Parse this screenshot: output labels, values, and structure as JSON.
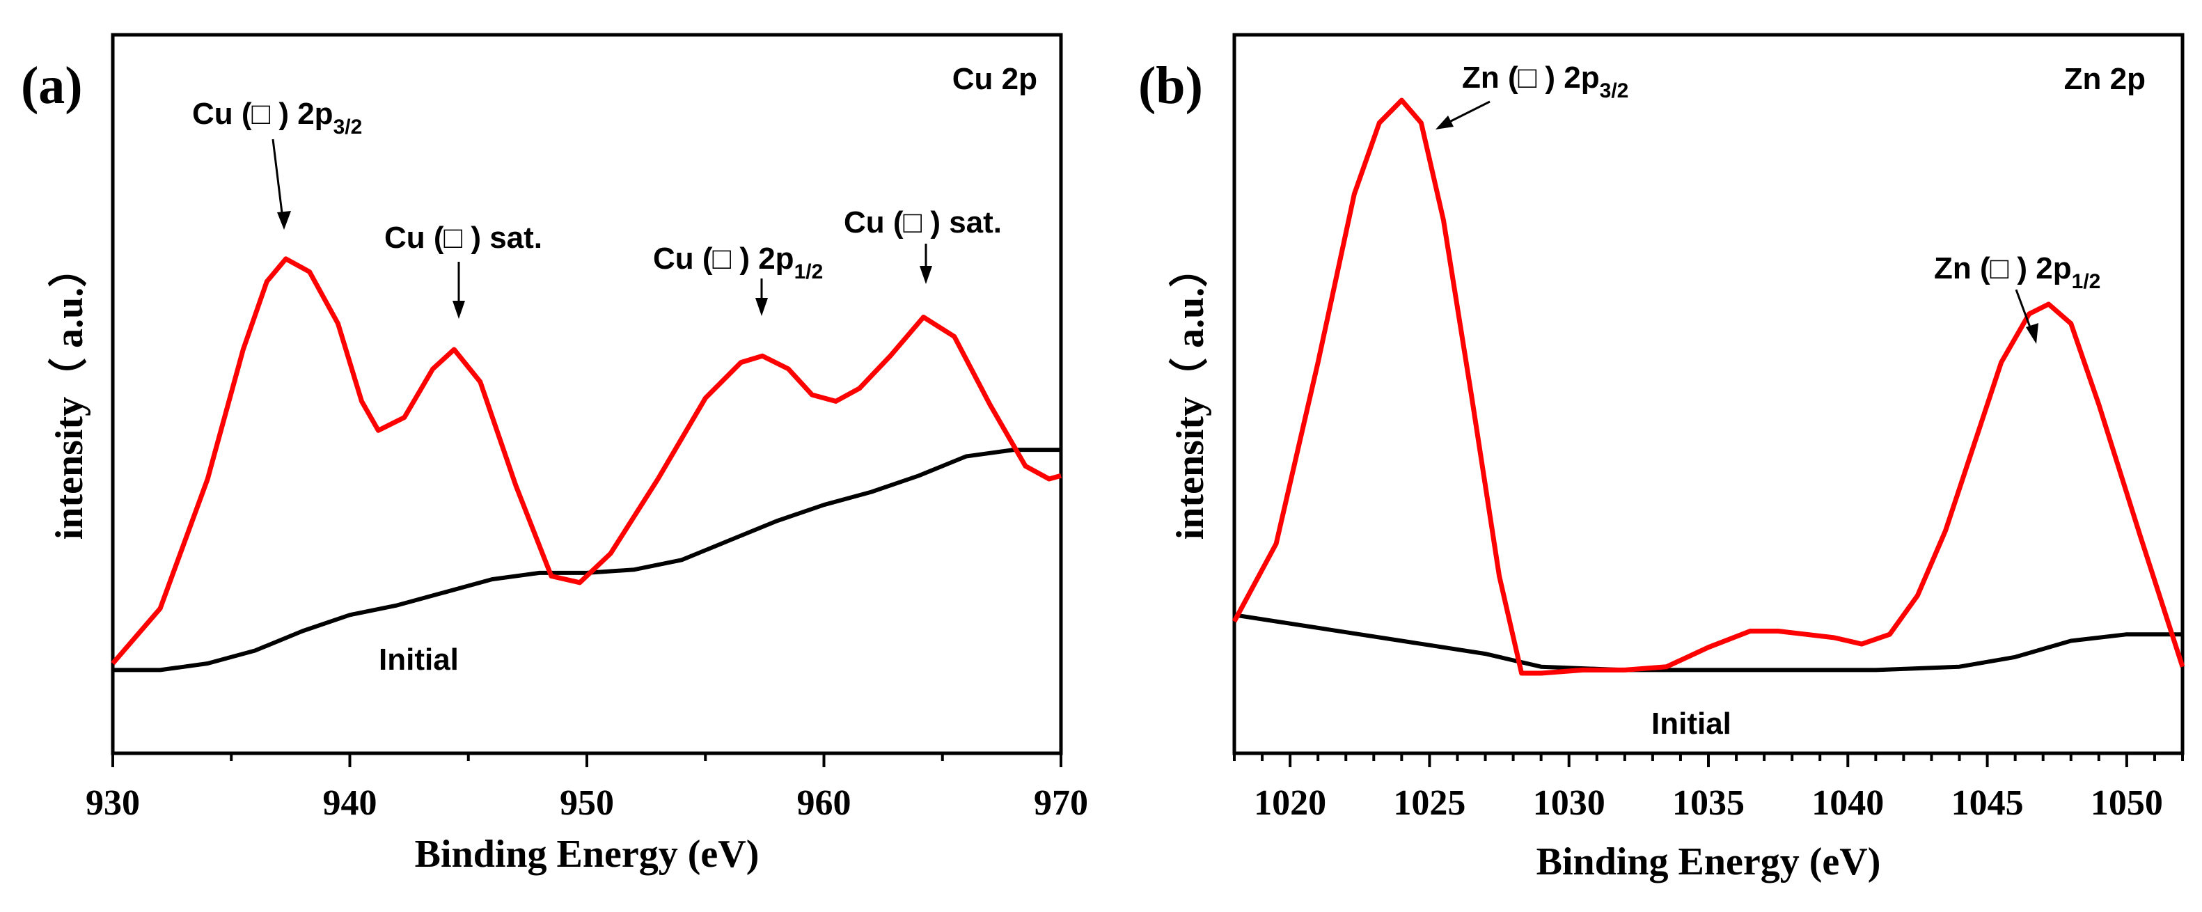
{
  "chart_data": [
    {
      "type": "line",
      "panel_label": "(a)",
      "title": "Cu 2p",
      "xlabel": "Binding Energy (eV)",
      "ylabel": "intensity（ a.u.）",
      "xlim": [
        930,
        970
      ],
      "ylim": [
        0,
        100
      ],
      "xticks": [
        "930",
        "940",
        "950",
        "960",
        "970"
      ],
      "yticks": [],
      "grid": false,
      "colors": {
        "fitted": "#ff0000",
        "baseline": "#000000"
      },
      "series": [
        {
          "name": "fitted",
          "x": [
            930,
            932,
            934,
            935.5,
            936.5,
            937.3,
            938.3,
            939.5,
            940.5,
            941.2,
            942.3,
            943.5,
            944.4,
            945.5,
            947,
            948.5,
            949.7,
            951,
            953,
            955,
            956.5,
            957.4,
            958.5,
            959.5,
            960.5,
            961.5,
            962.8,
            964.2,
            965.5,
            967,
            968.5,
            969.5,
            970
          ],
          "values": [
            11.5,
            20,
            40,
            60,
            70.5,
            74,
            72,
            64,
            52,
            47.5,
            49.5,
            57,
            60,
            55,
            39,
            25,
            24,
            28.5,
            40,
            52.5,
            58,
            59,
            57,
            53,
            52,
            54,
            59,
            65,
            62,
            51.5,
            42,
            40,
            40.5
          ]
        },
        {
          "name": "baseline",
          "x": [
            930,
            932,
            934,
            936,
            938,
            940,
            942,
            944,
            946,
            948,
            950,
            952,
            954,
            956,
            958,
            960,
            962,
            964,
            966,
            968,
            970
          ],
          "values": [
            10.5,
            10.5,
            11.5,
            13.5,
            16.5,
            19,
            20.5,
            22.5,
            24.5,
            25.5,
            25.5,
            26,
            27.5,
            30.5,
            33.5,
            36,
            38,
            40.5,
            43.5,
            44.5,
            44.5
          ]
        }
      ],
      "annotations": [
        {
          "main": "Cu (□ ) 2p",
          "sub": "3/2",
          "x": 937.3,
          "y": 74
        },
        {
          "main": "Cu (□ ) sat.",
          "sub": "",
          "x": 944.4,
          "y": 60
        },
        {
          "main": "Cu (□ ) 2p",
          "sub": "1/2",
          "x": 957.4,
          "y": 59
        },
        {
          "main": "Cu (□ ) sat.",
          "sub": "",
          "x": 964.2,
          "y": 65
        },
        {
          "main": "Initial",
          "sub": "",
          "x": 943,
          "y": 17
        }
      ]
    },
    {
      "type": "line",
      "panel_label": "(b)",
      "title": "Zn 2p",
      "xlabel": "Binding Energy (eV)",
      "ylabel": "intensity（ a.u.）",
      "xlim": [
        1018,
        1052
      ],
      "ylim": [
        0,
        100
      ],
      "xticks": [
        "1020",
        "1025",
        "1030",
        "1035",
        "1040",
        "1045",
        "1050"
      ],
      "yticks": [],
      "grid": false,
      "colors": {
        "fitted": "#ff0000",
        "baseline": "#000000"
      },
      "series": [
        {
          "name": "fitted",
          "x": [
            1018,
            1019.5,
            1021,
            1022.3,
            1023.2,
            1024,
            1024.7,
            1025.5,
            1026.5,
            1027.5,
            1028.3,
            1029,
            1030.5,
            1032,
            1033.5,
            1035,
            1036.5,
            1037.5,
            1038.5,
            1039.5,
            1040.5,
            1041.5,
            1042.5,
            1043.5,
            1044.5,
            1045.5,
            1046.5,
            1047.2,
            1048,
            1049,
            1050.5,
            1052
          ],
          "values": [
            18,
            30,
            58,
            84,
            95,
            98.5,
            95,
            80,
            53,
            25,
            10,
            10,
            10.5,
            10.5,
            11,
            14,
            16.5,
            16.5,
            16,
            15.5,
            14.5,
            16,
            22,
            32,
            45,
            58,
            65.5,
            67,
            64,
            51.5,
            31,
            11
          ]
        },
        {
          "name": "baseline",
          "x": [
            1018,
            1021,
            1024,
            1027,
            1029,
            1032,
            1035,
            1038,
            1041,
            1044,
            1046,
            1048,
            1050,
            1052
          ],
          "values": [
            19,
            17,
            15,
            13,
            11,
            10.5,
            10.5,
            10.5,
            10.5,
            11,
            12.5,
            15,
            16,
            16
          ]
        }
      ],
      "annotations": [
        {
          "main": "Zn (□ ) 2p",
          "sub": "3/2",
          "x": 1024,
          "y": 98.5
        },
        {
          "main": "Zn (□ ) 2p",
          "sub": "1/2",
          "x": 1047.2,
          "y": 67
        },
        {
          "main": "Initial",
          "sub": "",
          "x": 1030.5,
          "y": 5
        }
      ]
    }
  ]
}
